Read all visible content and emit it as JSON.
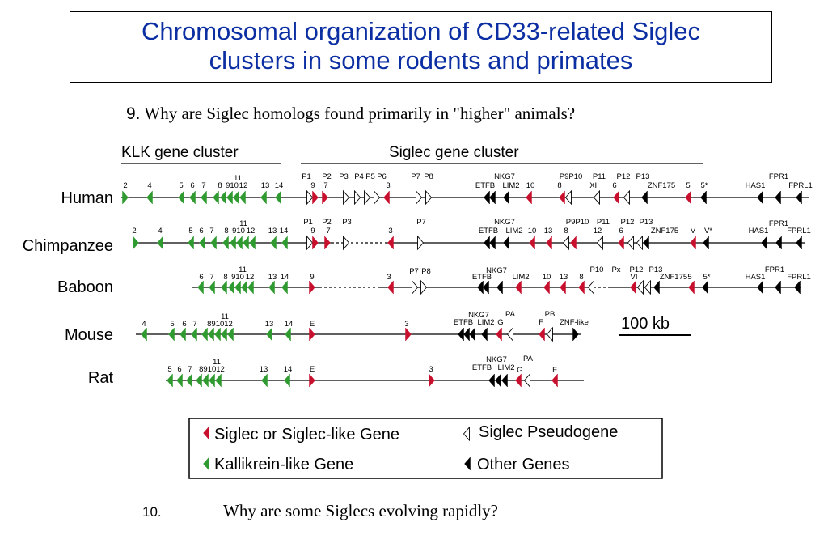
{
  "title": {
    "line1": "Chromosomal organization of CD33-related Siglec",
    "line2": "clusters in some rodents and primates"
  },
  "question9": {
    "number": "9.",
    "text": "Why are Siglec homologs found primarily in \"higher\" animals?"
  },
  "question10": {
    "number": "10.",
    "text": "Why are some Siglecs evolving rapidly?"
  },
  "headers": {
    "klk": "KLK gene cluster",
    "siglec": "Siglec gene cluster"
  },
  "species": [
    "Human",
    "Chimpanzee",
    "Baboon",
    "Mouse",
    "Rat"
  ],
  "scale_bar": "100 kb",
  "legend": {
    "siglec": "Siglec or Siglec-like Gene",
    "pseudo": "Siglec Pseudogene",
    "kallikrein": "Kallikrein-like Gene",
    "other": "Other Genes"
  },
  "colors": {
    "title": "#0b2fa3",
    "siglec": "#c8102e",
    "kallikrein": "#2f9a2f",
    "other": "#000000",
    "pseudogene": "#ffffff"
  }
}
